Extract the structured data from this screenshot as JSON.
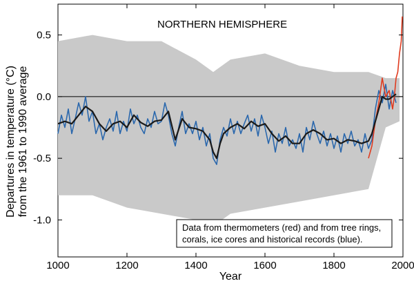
{
  "chart_data": {
    "type": "line",
    "title": "NORTHERN HEMISPHERE",
    "xlabel": "Year",
    "ylabel_line1": "Departures in temperature (°C)",
    "ylabel_line2": "from the 1961 to 1990 average",
    "xlim": [
      1000,
      2000
    ],
    "ylim": [
      -1.3,
      0.75
    ],
    "xticks": [
      1000,
      1200,
      1400,
      1600,
      1800,
      2000
    ],
    "yticks": [
      0.5,
      0.0,
      -0.5,
      -1.0
    ],
    "ytick_labels": [
      "0.5",
      "0.0",
      "-0.5",
      "-1.0"
    ],
    "grid": false,
    "reference_line": 0.0,
    "annotation_line1": "Data from thermometers (red) and from tree rings,",
    "annotation_line2": "corals, ice cores and historical records (blue).",
    "colors": {
      "thermometer": "#e03a1e",
      "proxy": "#2b68ad",
      "smoothed": "#1a1a1a",
      "uncertainty": "#c9c9c9"
    },
    "series": [
      {
        "name": "smoothed",
        "x": [
          1000,
          1020,
          1040,
          1060,
          1080,
          1100,
          1120,
          1140,
          1160,
          1180,
          1200,
          1220,
          1240,
          1260,
          1280,
          1300,
          1320,
          1340,
          1360,
          1380,
          1400,
          1420,
          1440,
          1450,
          1460,
          1470,
          1480,
          1500,
          1520,
          1540,
          1560,
          1580,
          1600,
          1620,
          1640,
          1660,
          1680,
          1700,
          1720,
          1740,
          1760,
          1780,
          1800,
          1820,
          1840,
          1860,
          1880,
          1900,
          1910,
          1920,
          1930,
          1940,
          1950,
          1960,
          1970,
          1980
        ],
        "y": [
          -0.22,
          -0.2,
          -0.22,
          -0.15,
          -0.08,
          -0.12,
          -0.22,
          -0.28,
          -0.22,
          -0.2,
          -0.25,
          -0.15,
          -0.21,
          -0.24,
          -0.2,
          -0.19,
          -0.12,
          -0.35,
          -0.18,
          -0.25,
          -0.26,
          -0.28,
          -0.35,
          -0.45,
          -0.5,
          -0.38,
          -0.3,
          -0.25,
          -0.22,
          -0.26,
          -0.2,
          -0.24,
          -0.22,
          -0.3,
          -0.36,
          -0.32,
          -0.38,
          -0.38,
          -0.3,
          -0.27,
          -0.3,
          -0.35,
          -0.34,
          -0.38,
          -0.35,
          -0.36,
          -0.38,
          -0.36,
          -0.3,
          -0.2,
          -0.1,
          0.0,
          -0.02,
          -0.02,
          0.0,
          0.02
        ]
      },
      {
        "name": "proxy",
        "x": [
          1000,
          1010,
          1020,
          1030,
          1040,
          1050,
          1060,
          1070,
          1080,
          1090,
          1100,
          1110,
          1120,
          1130,
          1140,
          1150,
          1160,
          1170,
          1180,
          1190,
          1200,
          1210,
          1220,
          1230,
          1240,
          1250,
          1260,
          1270,
          1280,
          1290,
          1300,
          1310,
          1320,
          1330,
          1340,
          1350,
          1360,
          1370,
          1380,
          1390,
          1400,
          1410,
          1420,
          1430,
          1440,
          1450,
          1460,
          1470,
          1480,
          1490,
          1500,
          1510,
          1520,
          1530,
          1540,
          1550,
          1560,
          1570,
          1580,
          1590,
          1600,
          1610,
          1620,
          1630,
          1640,
          1650,
          1660,
          1670,
          1680,
          1690,
          1700,
          1710,
          1720,
          1730,
          1740,
          1750,
          1760,
          1770,
          1780,
          1790,
          1800,
          1810,
          1820,
          1830,
          1840,
          1850,
          1860,
          1870,
          1880,
          1890,
          1900,
          1910,
          1920,
          1930,
          1940,
          1950,
          1960,
          1970,
          1980
        ],
        "y": [
          -0.3,
          -0.15,
          -0.25,
          -0.1,
          -0.3,
          -0.18,
          -0.05,
          -0.15,
          0.0,
          -0.2,
          -0.12,
          -0.3,
          -0.22,
          -0.35,
          -0.25,
          -0.18,
          -0.28,
          -0.12,
          -0.3,
          -0.2,
          -0.28,
          -0.1,
          -0.22,
          -0.15,
          -0.25,
          -0.3,
          -0.18,
          -0.25,
          -0.12,
          -0.22,
          -0.2,
          -0.05,
          -0.15,
          -0.3,
          -0.4,
          -0.25,
          -0.12,
          -0.3,
          -0.22,
          -0.3,
          -0.2,
          -0.35,
          -0.25,
          -0.4,
          -0.3,
          -0.5,
          -0.55,
          -0.35,
          -0.25,
          -0.32,
          -0.18,
          -0.3,
          -0.2,
          -0.3,
          -0.22,
          -0.15,
          -0.28,
          -0.18,
          -0.32,
          -0.15,
          -0.25,
          -0.38,
          -0.28,
          -0.45,
          -0.3,
          -0.38,
          -0.25,
          -0.4,
          -0.35,
          -0.42,
          -0.3,
          -0.45,
          -0.25,
          -0.35,
          -0.2,
          -0.3,
          -0.38,
          -0.28,
          -0.4,
          -0.3,
          -0.42,
          -0.32,
          -0.45,
          -0.3,
          -0.38,
          -0.28,
          -0.4,
          -0.35,
          -0.45,
          -0.3,
          -0.42,
          -0.35,
          -0.1,
          0.05,
          -0.05,
          0.1,
          -0.1,
          0.05,
          -0.05
        ]
      },
      {
        "name": "thermometer",
        "x": [
          1900,
          1910,
          1920,
          1930,
          1940,
          1950,
          1960,
          1970,
          1975,
          1980,
          1985,
          1990,
          1995,
          1998
        ],
        "y": [
          -0.5,
          -0.4,
          -0.2,
          -0.05,
          0.15,
          0.0,
          0.05,
          -0.1,
          0.0,
          0.15,
          0.2,
          0.35,
          0.45,
          0.65
        ]
      },
      {
        "name": "uncertainty",
        "x": [
          1000,
          1100,
          1200,
          1300,
          1400,
          1450,
          1500,
          1600,
          1700,
          1800,
          1900,
          1950,
          1990
        ],
        "upper": [
          0.45,
          0.5,
          0.45,
          0.45,
          0.3,
          0.2,
          0.3,
          0.35,
          0.25,
          0.2,
          0.2,
          0.15,
          0.15
        ],
        "lower": [
          -0.8,
          -0.8,
          -0.9,
          -0.95,
          -1.0,
          -1.05,
          -0.95,
          -0.9,
          -0.85,
          -0.8,
          -0.75,
          -0.25,
          -0.2
        ]
      }
    ]
  }
}
